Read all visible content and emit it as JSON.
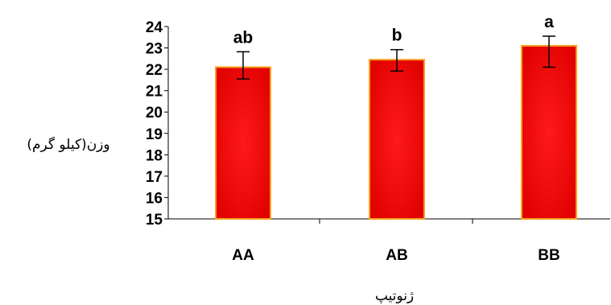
{
  "chart_data": {
    "type": "bar",
    "categories": [
      "AA",
      "AB",
      "BB"
    ],
    "values": [
      22.1,
      22.45,
      23.1
    ],
    "error_low": [
      21.55,
      21.92,
      22.1
    ],
    "error_high": [
      22.82,
      22.92,
      23.55
    ],
    "significance_letters": [
      "ab",
      "b",
      "a"
    ],
    "ylim": [
      15,
      24
    ],
    "yticks": [
      "15",
      "16",
      "17",
      "18",
      "19",
      "20",
      "21",
      "22",
      "23",
      "24"
    ],
    "ylabel": "وزن(کیلو گرم)",
    "xlabel": "ژنوتیپ",
    "grid": false,
    "bar_color": "#e00000",
    "bar_center_color": "#ff1a1a",
    "bar_edge_color": "#f5a020"
  }
}
